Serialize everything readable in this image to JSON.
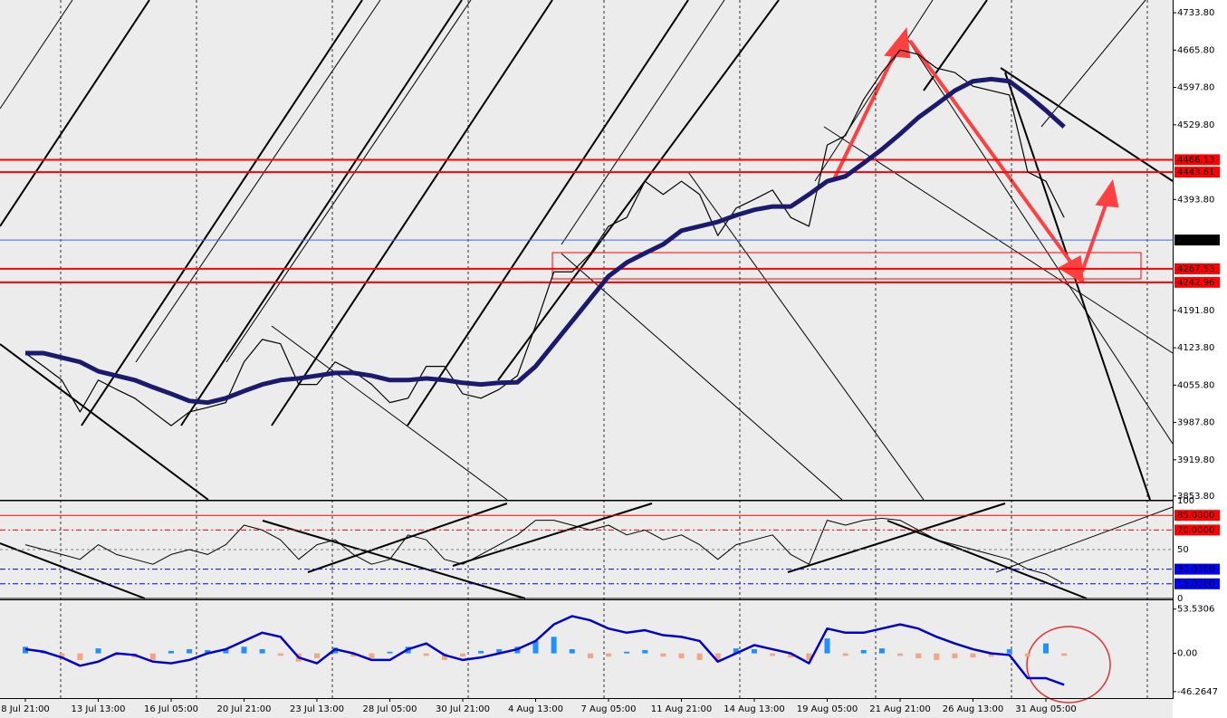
{
  "chart_data": [
    {
      "type": "line",
      "series": [
        {
          "color": "#000000",
          "width": 1.2,
          "values": [
            4114,
            4090,
            4065,
            4007,
            4065,
            4048,
            4032,
            4007,
            3982,
            4007,
            4015,
            4024,
            4098,
            4139,
            4131,
            4057,
            4057,
            4098,
            4081,
            4057,
            4024,
            4032,
            4090,
            4090,
            4040,
            4032,
            4048,
            4073,
            4164,
            4262,
            4262,
            4295,
            4345,
            4361,
            4427,
            4403,
            4427,
            4403,
            4328,
            4378,
            4394,
            4411,
            4361,
            4345,
            4493,
            4510,
            4576,
            4625,
            4666,
            4658,
            4633,
            4625,
            4600,
            4592,
            4584,
            4444,
            4427,
            4361
          ]
        },
        {
          "color": "#1a1a6e",
          "width": 5,
          "values": [
            4114,
            4114,
            4106,
            4098,
            4081,
            4073,
            4065,
            4052,
            4040,
            4027,
            4024,
            4032,
            4045,
            4057,
            4065,
            4068,
            4073,
            4078,
            4078,
            4073,
            4065,
            4065,
            4068,
            4065,
            4060,
            4057,
            4060,
            4061,
            4090,
            4131,
            4172,
            4213,
            4254,
            4279,
            4296,
            4312,
            4337,
            4345,
            4353,
            4365,
            4375,
            4381,
            4381,
            4403,
            4427,
            4436,
            4460,
            4485,
            4513,
            4543,
            4567,
            4592,
            4609,
            4613,
            4609,
            4584,
            4556,
            4526
          ]
        }
      ],
      "ylim": [
        3847,
        4757
      ],
      "yticks": [
        {
          "value": 4733.8,
          "label": "4733.80"
        },
        {
          "value": 4665.8,
          "label": "4665.80"
        },
        {
          "value": 4597.8,
          "label": "4597.80"
        },
        {
          "value": 4529.8,
          "label": "4529.80"
        },
        {
          "value": 4393.8,
          "label": "4393.80"
        },
        {
          "value": 4191.8,
          "label": "4191.80"
        },
        {
          "value": 4123.8,
          "label": "4123.80"
        },
        {
          "value": 4055.8,
          "label": "4055.80"
        },
        {
          "value": 3987.8,
          "label": "3987.80"
        },
        {
          "value": 3919.8,
          "label": "3919.80"
        },
        {
          "value": 3853.8,
          "label": "3853.80"
        }
      ],
      "levels": [
        4466.13,
        4443.61,
        4319.98,
        4267.53,
        4242.96
      ],
      "level_colors": [
        "#ff0000",
        "#ff0000",
        "#4169e1",
        "#ff0000",
        "#ff0000"
      ],
      "level_label_colors": [
        "#ff0000",
        "#ff0000",
        "#000000",
        "#ff0000",
        "#ff0000"
      ]
    },
    {
      "type": "line",
      "series": [
        {
          "color": "#000000",
          "width": 1,
          "values": [
            55,
            50,
            45,
            40,
            55,
            45,
            40,
            35,
            45,
            50,
            45,
            55,
            75,
            70,
            60,
            40,
            55,
            60,
            45,
            35,
            40,
            65,
            60,
            40,
            35,
            45,
            55,
            65,
            80,
            80,
            75,
            70,
            75,
            65,
            70,
            60,
            65,
            55,
            40,
            55,
            60,
            65,
            45,
            35,
            80,
            75,
            80,
            82,
            80,
            70,
            60,
            55,
            50,
            45,
            40,
            30,
            25,
            15
          ]
        }
      ],
      "ylim": [
        0,
        100
      ],
      "yticks": [
        100,
        {
          "value": 85,
          "label": "85.0000"
        },
        {
          "value": 70,
          "label": "70.0000"
        },
        50,
        {
          "value": 30,
          "label": "30.0000"
        },
        {
          "value": 15,
          "label": "15.0000"
        },
        0
      ],
      "tick_colors": [
        "#000000",
        "#ff0000",
        "#ff0000",
        "#808080",
        "#0000ff",
        "#0000ff",
        "#000000"
      ]
    },
    {
      "type": "bar",
      "categories": [
        "8 Jul 21:00",
        null,
        null,
        null,
        "13 Jul 13:00",
        null,
        null,
        null,
        "16 Jul 05:00",
        null,
        null,
        null,
        "20 Jul 21:00",
        null,
        null,
        null,
        "23 Jul 13:00",
        null,
        null,
        null,
        "28 Jul 05:00",
        null,
        null,
        null,
        "30 Jul 21:00",
        null,
        null,
        null,
        "4 Aug 13:00",
        null,
        null,
        null,
        "7 Aug 05:00",
        null,
        null,
        null,
        "11 Aug 21:00",
        null,
        null,
        null,
        "14 Aug 13:00",
        null,
        null,
        null,
        "19 Aug 05:00",
        null,
        null,
        null,
        "21 Aug 21:00",
        null,
        null,
        null,
        "26 Aug 13:00",
        null,
        null,
        null,
        "31 Aug 05:00",
        null
      ],
      "series": [
        {
          "type": "bar",
          "color": "#1e90ff",
          "negative_color": "#f4a582",
          "values": [
            8,
            3,
            -5,
            -8,
            6,
            -3,
            -5,
            -8,
            3,
            5,
            4,
            6,
            8,
            5,
            -3,
            -10,
            -6,
            7,
            -4,
            -6,
            2,
            8,
            -3,
            -8,
            -4,
            3,
            5,
            8,
            15,
            20,
            5,
            -6,
            -4,
            2,
            4,
            -4,
            -6,
            -8,
            -10,
            6,
            5,
            -3,
            -5,
            -8,
            18,
            -3,
            4,
            6,
            -3,
            -6,
            -8,
            -6,
            -5,
            -4,
            5,
            -4,
            12,
            -3
          ]
        },
        {
          "type": "line",
          "color": "#0000cd",
          "width": 2.5,
          "values": [
            5,
            2,
            -5,
            -15,
            -10,
            0,
            -2,
            -10,
            -12,
            -8,
            0,
            5,
            15,
            25,
            20,
            -5,
            -12,
            5,
            0,
            -8,
            -8,
            5,
            12,
            -2,
            -8,
            -5,
            0,
            5,
            15,
            35,
            45,
            40,
            30,
            25,
            28,
            22,
            20,
            15,
            -10,
            0,
            10,
            5,
            0,
            -12,
            30,
            25,
            25,
            30,
            35,
            30,
            20,
            12,
            5,
            0,
            -2,
            -30,
            -30,
            -38
          ]
        }
      ],
      "ylim": [
        -53,
        62
      ],
      "yticks": [
        53.5306,
        {
          "value": 0,
          "label": "0.00"
        },
        -46.2647
      ]
    }
  ]
}
